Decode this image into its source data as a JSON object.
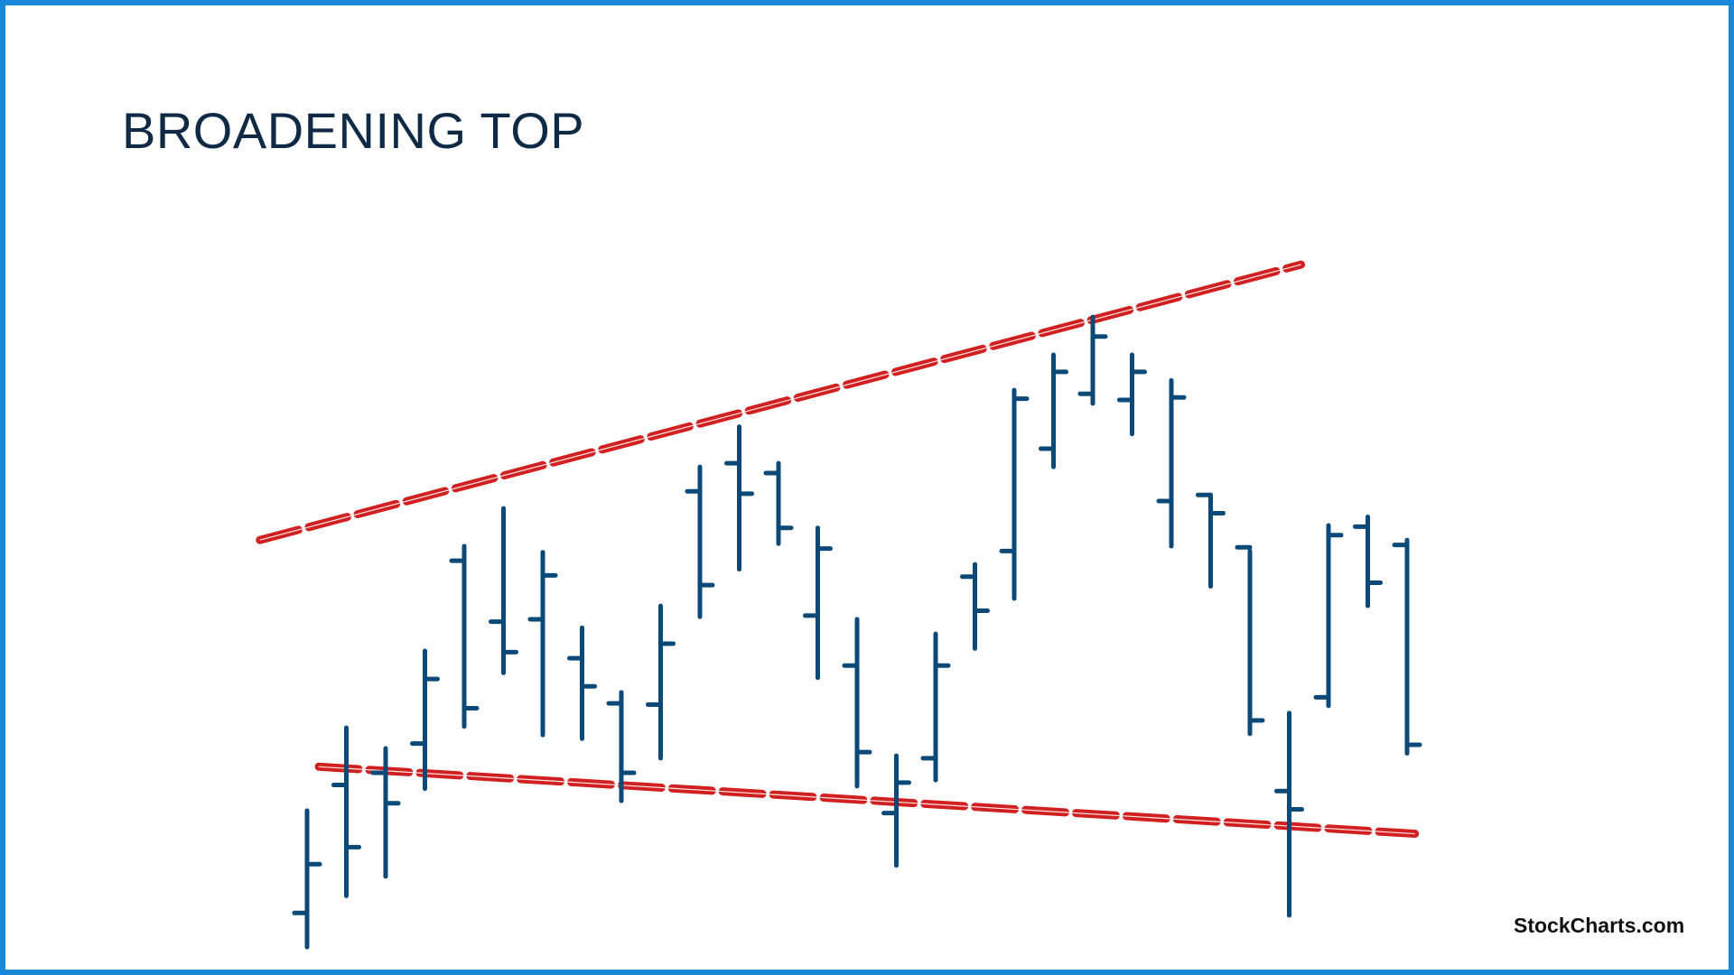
{
  "chart_data": {
    "type": "ohlc",
    "title": "BROADENING TOP",
    "colors": {
      "bar": "#0b4a78",
      "trendline": "#d21f1f",
      "frame": "#1a88d8",
      "title": "#0f2a44"
    },
    "grid": false,
    "bars": [
      {
        "x": 1,
        "open": -13.8,
        "high": -5.4,
        "low": -16.6,
        "close": -9.8
      },
      {
        "x": 2,
        "open": -3.3,
        "high": 1.4,
        "low": -12.4,
        "close": -8.4
      },
      {
        "x": 3,
        "open": -2.3,
        "high": -0.3,
        "low": -10.8,
        "close": -4.8
      },
      {
        "x": 4,
        "open": 0.1,
        "high": 7.7,
        "low": -3.6,
        "close": 5.4
      },
      {
        "x": 5,
        "open": 15.1,
        "high": 16.3,
        "low": 1.5,
        "close": 3.0
      },
      {
        "x": 6,
        "open": 10.1,
        "high": 19.4,
        "low": 5.9,
        "close": 7.6
      },
      {
        "x": 7,
        "open": 10.3,
        "high": 15.8,
        "low": 0.8,
        "close": 13.9
      },
      {
        "x": 8,
        "open": 7.1,
        "high": 9.6,
        "low": 0.5,
        "close": 4.8
      },
      {
        "x": 9,
        "open": 3.4,
        "high": 4.3,
        "low": -4.6,
        "close": -2.3
      },
      {
        "x": 10,
        "open": 3.3,
        "high": 11.4,
        "low": -1.1,
        "close": 8.3
      },
      {
        "x": 11,
        "open": 20.8,
        "high": 22.8,
        "low": 10.5,
        "close": 13.1
      },
      {
        "x": 12,
        "open": 23.1,
        "high": 26.1,
        "low": 14.4,
        "close": 20.6
      },
      {
        "x": 13,
        "open": 22.3,
        "high": 23.1,
        "low": 16.5,
        "close": 17.8
      },
      {
        "x": 14,
        "open": 10.6,
        "high": 17.8,
        "low": 5.5,
        "close": 16.1
      },
      {
        "x": 15,
        "open": 6.5,
        "high": 10.3,
        "low": -3.4,
        "close": -0.6
      },
      {
        "x": 16,
        "open": -5.6,
        "high": -0.9,
        "low": -9.9,
        "close": -3.1
      },
      {
        "x": 17,
        "open": -1.1,
        "high": 9.1,
        "low": -2.9,
        "close": 6.5
      },
      {
        "x": 18,
        "open": 13.8,
        "high": 14.8,
        "low": 7.9,
        "close": 11.0
      },
      {
        "x": 19,
        "open": 15.9,
        "high": 29.1,
        "low": 12.0,
        "close": 28.4
      },
      {
        "x": 20,
        "open": 24.3,
        "high": 32.0,
        "low": 22.8,
        "close": 30.6
      },
      {
        "x": 21,
        "open": 28.8,
        "high": 35.1,
        "low": 28.0,
        "close": 33.5
      },
      {
        "x": 22,
        "open": 28.3,
        "high": 32.0,
        "low": 25.5,
        "close": 30.6
      },
      {
        "x": 23,
        "open": 20.0,
        "high": 29.9,
        "low": 16.3,
        "close": 28.5
      },
      {
        "x": 24,
        "open": 20.5,
        "high": 20.5,
        "low": 13.0,
        "close": 19.0
      },
      {
        "x": 25,
        "open": 16.2,
        "high": 15.9,
        "low": 0.9,
        "close": 2.0
      },
      {
        "x": 26,
        "open": -3.8,
        "high": 2.6,
        "low": -14.0,
        "close": -5.3
      },
      {
        "x": 27,
        "open": 3.9,
        "high": 18.0,
        "low": 3.2,
        "close": 17.2
      },
      {
        "x": 28,
        "open": 17.9,
        "high": 18.7,
        "low": 11.4,
        "close": 13.3
      },
      {
        "x": 29,
        "open": 16.4,
        "high": 16.8,
        "low": -0.7,
        "close": 0.0
      }
    ],
    "trendlines": [
      {
        "name": "upper",
        "from": [
          -0.2,
          16.8
        ],
        "to": [
          26.3,
          39.4
        ]
      },
      {
        "name": "lower",
        "from": [
          1.3,
          -1.8
        ],
        "to": [
          29.2,
          -7.3
        ]
      }
    ],
    "ylim": [
      -17,
      40
    ]
  },
  "brand": "StockCharts.com"
}
